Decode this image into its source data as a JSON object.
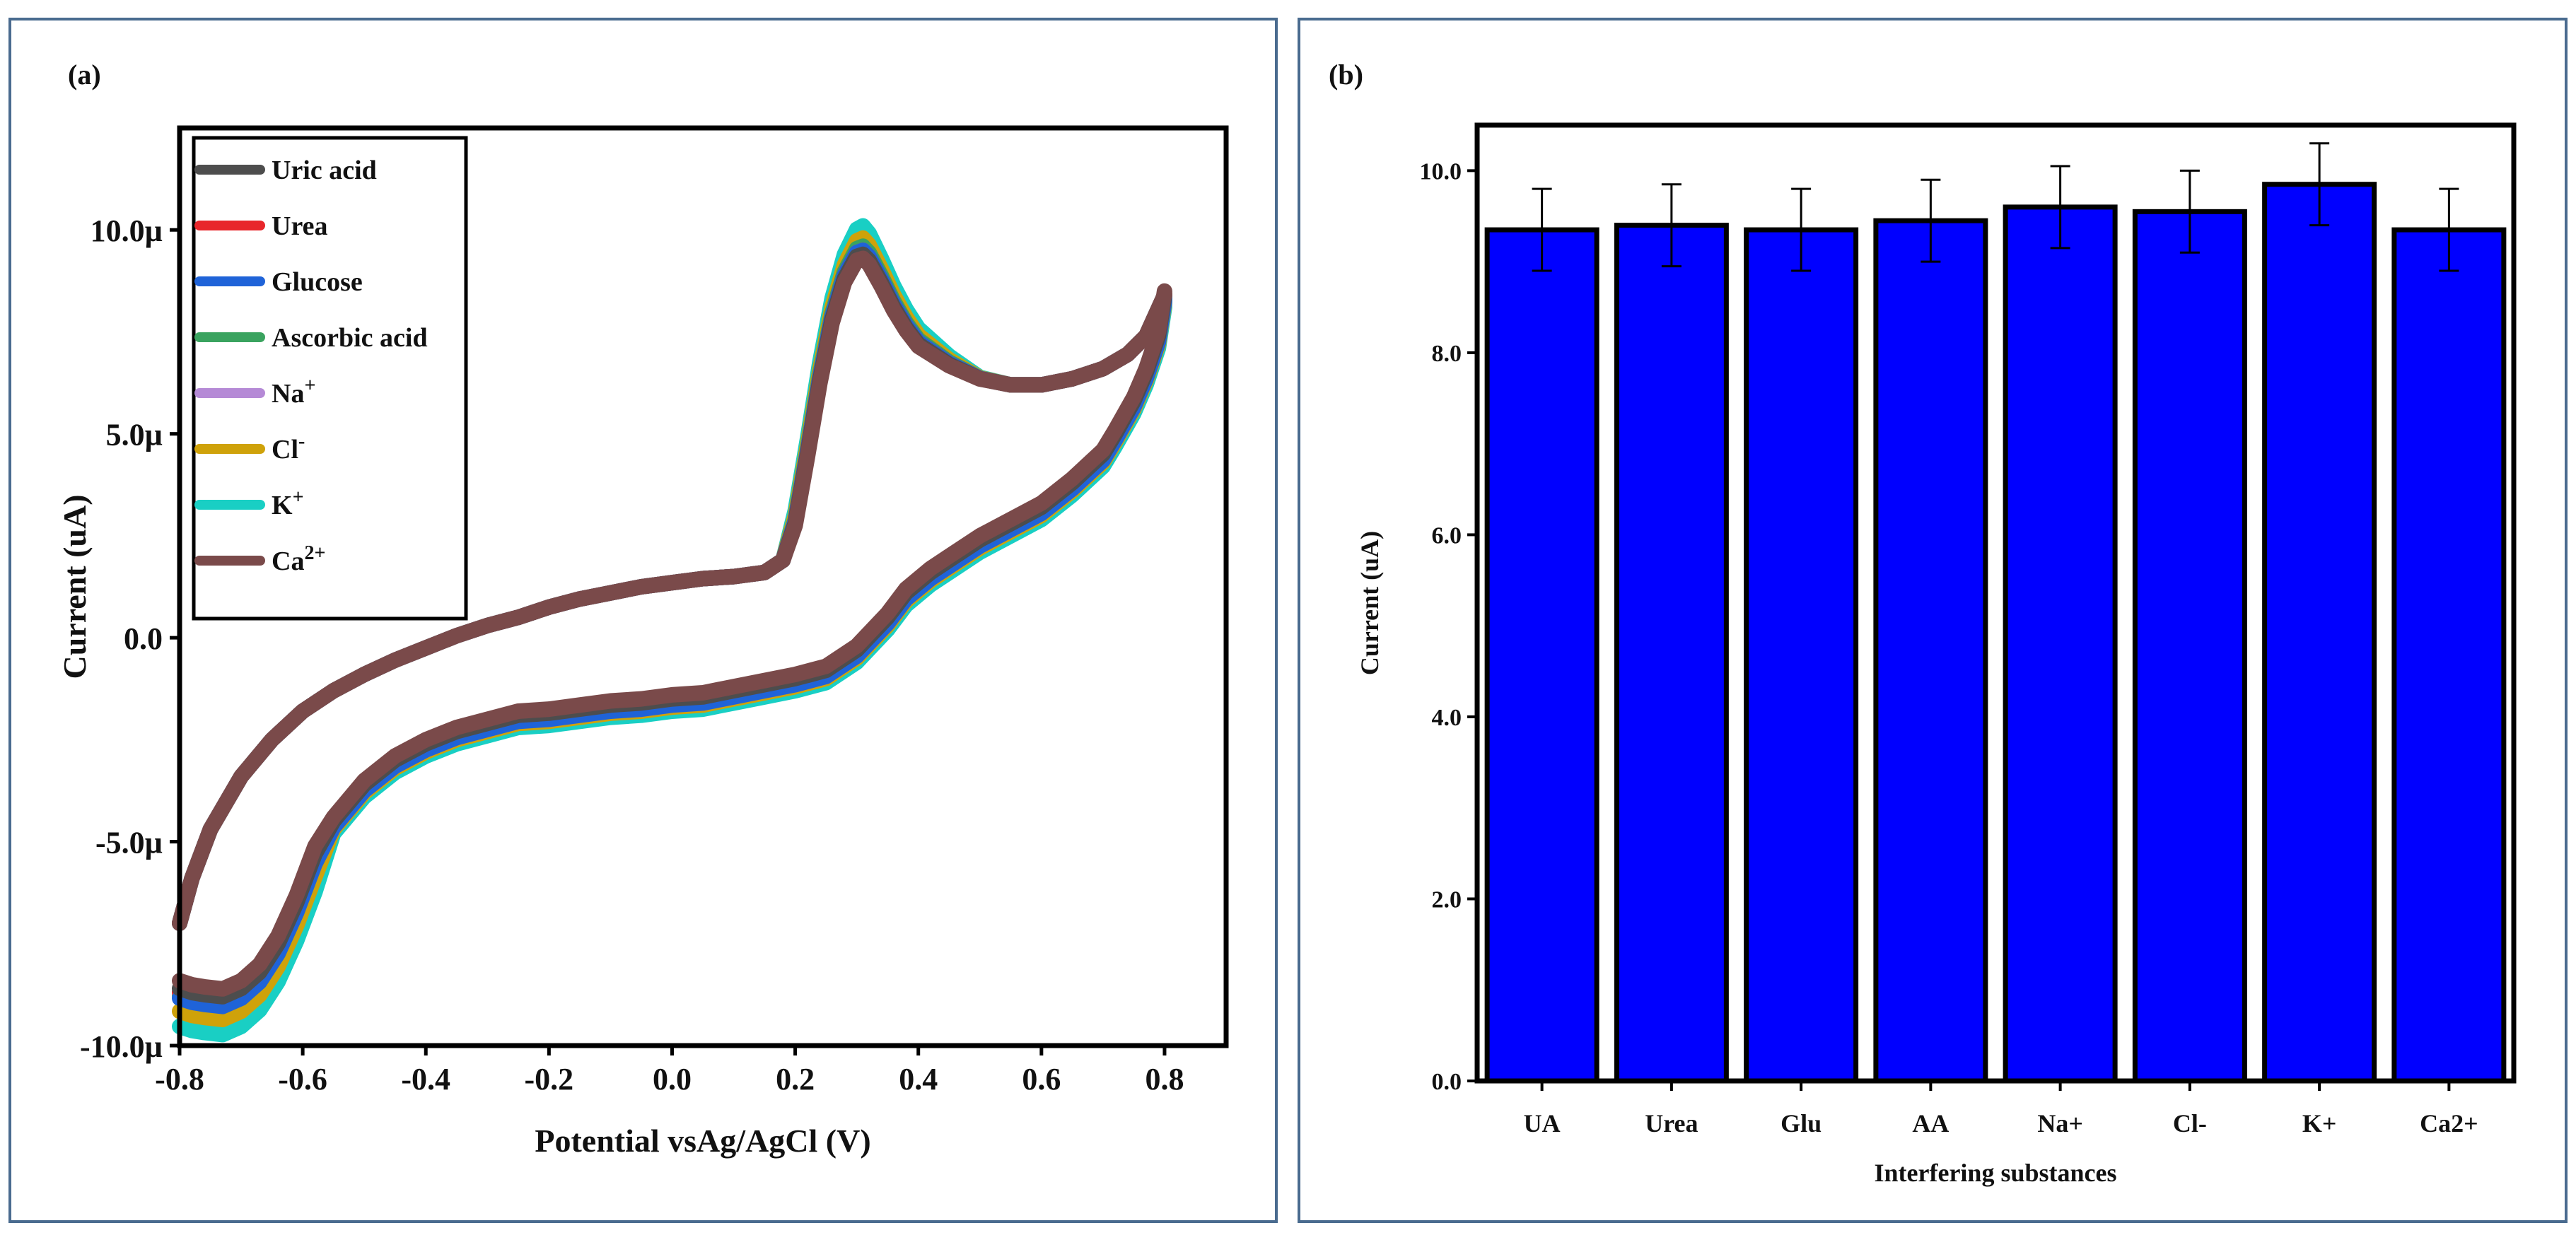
{
  "chart_data": [
    {
      "type": "line",
      "panel_label": "(a)",
      "title": "",
      "xlabel": "Potential vsAg/AgCl (V)",
      "ylabel": "Current (uA)",
      "xlim": [
        -0.8,
        0.9
      ],
      "ylim": [
        -10.0,
        12.5
      ],
      "x_ticks": [
        "-0.8",
        "-0.6",
        "-0.4",
        "-0.2",
        "0.0",
        "0.2",
        "0.4",
        "0.6",
        "0.8"
      ],
      "y_ticks": [
        "10.0µ",
        "5.0µ",
        "0.0",
        "-5.0µ",
        "-10.0µ"
      ],
      "x_tick_values": [
        -0.8,
        -0.6,
        -0.4,
        -0.2,
        0.0,
        0.2,
        0.4,
        0.6,
        0.8
      ],
      "y_tick_values": [
        10.0,
        5.0,
        0.0,
        -5.0,
        -10.0
      ],
      "legend_position": "top-left",
      "series": [
        {
          "name": "Uric acid",
          "legend_label": "Uric acid",
          "sup": "",
          "color": "#4d4d4d",
          "peak": 9.4,
          "shift": 0.0
        },
        {
          "name": "Urea",
          "legend_label": "Urea",
          "sup": "",
          "color": "#e8262b",
          "peak": 9.5,
          "shift": 0.0
        },
        {
          "name": "Glucose",
          "legend_label": "Glucose",
          "sup": "",
          "color": "#1f63d8",
          "peak": 9.5,
          "shift": -0.15
        },
        {
          "name": "Ascorbic acid",
          "legend_label": "Ascorbic acid",
          "sup": "",
          "color": "#3aa35f",
          "peak": 9.6,
          "shift": 0.0
        },
        {
          "name": "Na+",
          "legend_label": "Na",
          "sup": "+",
          "color": "#b58ad6",
          "peak": 9.5,
          "shift": 0.0
        },
        {
          "name": "Cl-",
          "legend_label": "Cl",
          "sup": "-",
          "color": "#cfa20a",
          "peak": 9.8,
          "shift": -0.2
        },
        {
          "name": "K+",
          "legend_label": "K",
          "sup": "+",
          "color": "#19cfc4",
          "peak": 10.1,
          "shift": -0.3
        },
        {
          "name": "Ca2+",
          "legend_label": "Ca",
          "sup": "2+",
          "color": "#7a4a4a",
          "peak": 9.3,
          "shift": 0.1
        }
      ],
      "cv_forward": [
        [
          -0.8,
          -7.0
        ],
        [
          -0.78,
          -5.9
        ],
        [
          -0.75,
          -4.7
        ],
        [
          -0.7,
          -3.4
        ],
        [
          -0.65,
          -2.5
        ],
        [
          -0.6,
          -1.8
        ],
        [
          -0.55,
          -1.3
        ],
        [
          -0.5,
          -0.9
        ],
        [
          -0.45,
          -0.55
        ],
        [
          -0.4,
          -0.25
        ],
        [
          -0.35,
          0.05
        ],
        [
          -0.3,
          0.3
        ],
        [
          -0.25,
          0.5
        ],
        [
          -0.2,
          0.75
        ],
        [
          -0.15,
          0.95
        ],
        [
          -0.1,
          1.1
        ],
        [
          -0.05,
          1.25
        ],
        [
          0.0,
          1.35
        ],
        [
          0.05,
          1.45
        ],
        [
          0.1,
          1.5
        ],
        [
          0.15,
          1.6
        ],
        [
          0.18,
          1.9
        ],
        [
          0.2,
          2.8
        ],
        [
          0.22,
          4.5
        ],
        [
          0.24,
          6.3
        ],
        [
          0.26,
          7.8
        ],
        [
          0.28,
          8.8
        ],
        [
          0.3,
          9.35
        ],
        [
          0.31,
          9.4
        ],
        [
          0.32,
          9.25
        ],
        [
          0.34,
          8.7
        ],
        [
          0.36,
          8.1
        ],
        [
          0.38,
          7.6
        ],
        [
          0.4,
          7.2
        ],
        [
          0.45,
          6.7
        ],
        [
          0.5,
          6.35
        ],
        [
          0.55,
          6.2
        ],
        [
          0.6,
          6.2
        ],
        [
          0.65,
          6.35
        ],
        [
          0.7,
          6.6
        ],
        [
          0.74,
          6.95
        ],
        [
          0.77,
          7.4
        ],
        [
          0.8,
          8.4
        ]
      ],
      "cv_reverse": [
        [
          0.8,
          8.4
        ],
        [
          0.79,
          7.4
        ],
        [
          0.77,
          6.5
        ],
        [
          0.75,
          5.8
        ],
        [
          0.72,
          5.0
        ],
        [
          0.7,
          4.5
        ],
        [
          0.65,
          3.8
        ],
        [
          0.6,
          3.2
        ],
        [
          0.55,
          2.8
        ],
        [
          0.5,
          2.4
        ],
        [
          0.45,
          1.9
        ],
        [
          0.42,
          1.6
        ],
        [
          0.38,
          1.1
        ],
        [
          0.35,
          0.5
        ],
        [
          0.3,
          -0.3
        ],
        [
          0.25,
          -0.8
        ],
        [
          0.2,
          -1.0
        ],
        [
          0.15,
          -1.15
        ],
        [
          0.1,
          -1.3
        ],
        [
          0.05,
          -1.45
        ],
        [
          0.0,
          -1.5
        ],
        [
          -0.05,
          -1.6
        ],
        [
          -0.1,
          -1.65
        ],
        [
          -0.15,
          -1.75
        ],
        [
          -0.2,
          -1.85
        ],
        [
          -0.25,
          -1.9
        ],
        [
          -0.3,
          -2.1
        ],
        [
          -0.35,
          -2.3
        ],
        [
          -0.4,
          -2.6
        ],
        [
          -0.45,
          -3.0
        ],
        [
          -0.5,
          -3.6
        ],
        [
          -0.55,
          -4.5
        ],
        [
          -0.58,
          -5.3
        ],
        [
          -0.61,
          -6.5
        ],
        [
          -0.64,
          -7.5
        ],
        [
          -0.67,
          -8.2
        ],
        [
          -0.7,
          -8.6
        ],
        [
          -0.73,
          -8.8
        ],
        [
          -0.76,
          -8.75
        ],
        [
          -0.78,
          -8.7
        ],
        [
          -0.8,
          -8.6
        ]
      ]
    },
    {
      "type": "bar",
      "panel_label": "(b)",
      "title": "",
      "xlabel": "Interfering substances",
      "ylabel": "Current (uA)",
      "categories": [
        "UA",
        "Urea",
        "Glu",
        "AA",
        "Na+",
        "Cl-",
        "K+",
        "Ca2+"
      ],
      "values": [
        9.35,
        9.4,
        9.35,
        9.45,
        9.6,
        9.55,
        9.85,
        9.35
      ],
      "errors": [
        0.45,
        0.45,
        0.45,
        0.45,
        0.45,
        0.45,
        0.45,
        0.45
      ],
      "ylim": [
        0.0,
        10.5
      ],
      "y_ticks": [
        "0.0",
        "2.0",
        "4.0",
        "6.0",
        "8.0",
        "10.0"
      ],
      "y_tick_values": [
        0.0,
        2.0,
        4.0,
        6.0,
        8.0,
        10.0
      ],
      "bar_color": "#0000ff"
    }
  ]
}
